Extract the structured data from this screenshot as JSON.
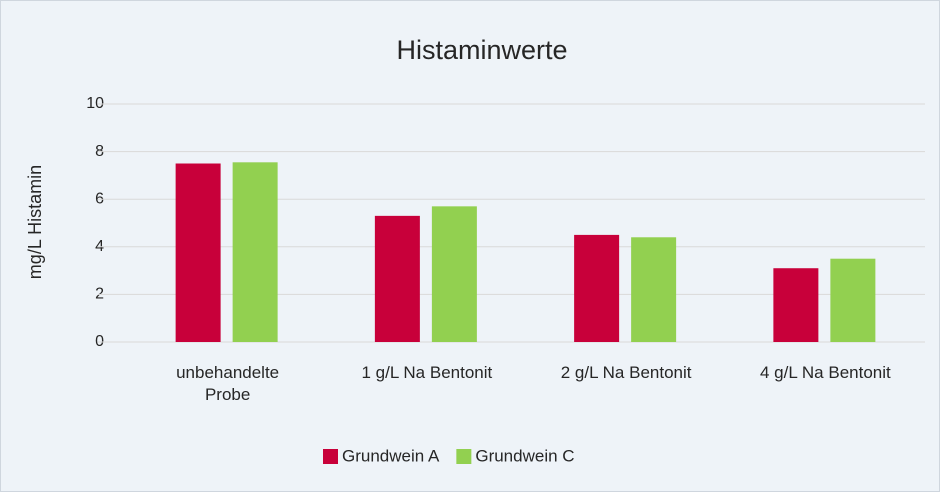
{
  "chart_data": {
    "type": "bar",
    "title": "Histaminwerte",
    "y_label": "mg/L Histamin",
    "categories": [
      "unbehandelte Probe",
      "1 g/L Na Bentonit",
      "2 g/L Na Bentonit",
      "4 g/L Na Bentonit"
    ],
    "series": [
      {
        "name": "Grundwein A",
        "color": "#c8003a",
        "values": [
          7.5,
          5.3,
          4.5,
          3.1
        ]
      },
      {
        "name": "Grundwein C",
        "color": "#92d050",
        "values": [
          7.55,
          5.7,
          4.4,
          3.5
        ]
      }
    ],
    "ylim": [
      0,
      10
    ],
    "yticks": [
      0,
      2,
      4,
      6,
      8,
      10
    ],
    "grid": true,
    "legend": "bottom"
  }
}
